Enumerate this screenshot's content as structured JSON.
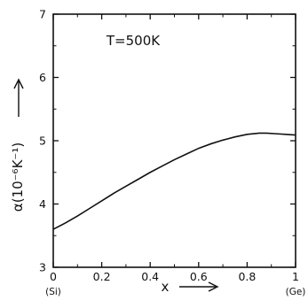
{
  "chart_data": {
    "type": "line",
    "title": "",
    "annotation": "T=500K",
    "xlabel": "x",
    "ylabel": "α(10⁻⁶K⁻¹)",
    "xlim": [
      0,
      1
    ],
    "ylim": [
      3,
      7
    ],
    "x_ticks": [
      0,
      0.2,
      0.4,
      0.6,
      0.8,
      1
    ],
    "x_tick_labels": [
      "0",
      "0.2",
      "0.4",
      "0.6",
      "0.8",
      "1"
    ],
    "y_ticks": [
      3,
      4,
      5,
      6,
      7
    ],
    "y_tick_labels": [
      "3",
      "4",
      "5",
      "6",
      "7"
    ],
    "x_end_labels": {
      "left": "(Si)",
      "right": "(Ge)"
    },
    "grid": false,
    "series": [
      {
        "x": [
          0,
          0.05,
          0.1,
          0.15,
          0.2,
          0.25,
          0.3,
          0.35,
          0.4,
          0.45,
          0.5,
          0.55,
          0.6,
          0.65,
          0.7,
          0.75,
          0.8,
          0.85,
          0.88,
          0.92,
          0.96,
          1.0
        ],
        "values": [
          3.6,
          3.7,
          3.81,
          3.93,
          4.05,
          4.17,
          4.28,
          4.39,
          4.5,
          4.6,
          4.7,
          4.79,
          4.88,
          4.95,
          5.01,
          5.06,
          5.1,
          5.12,
          5.12,
          5.11,
          5.1,
          5.09
        ]
      }
    ]
  }
}
